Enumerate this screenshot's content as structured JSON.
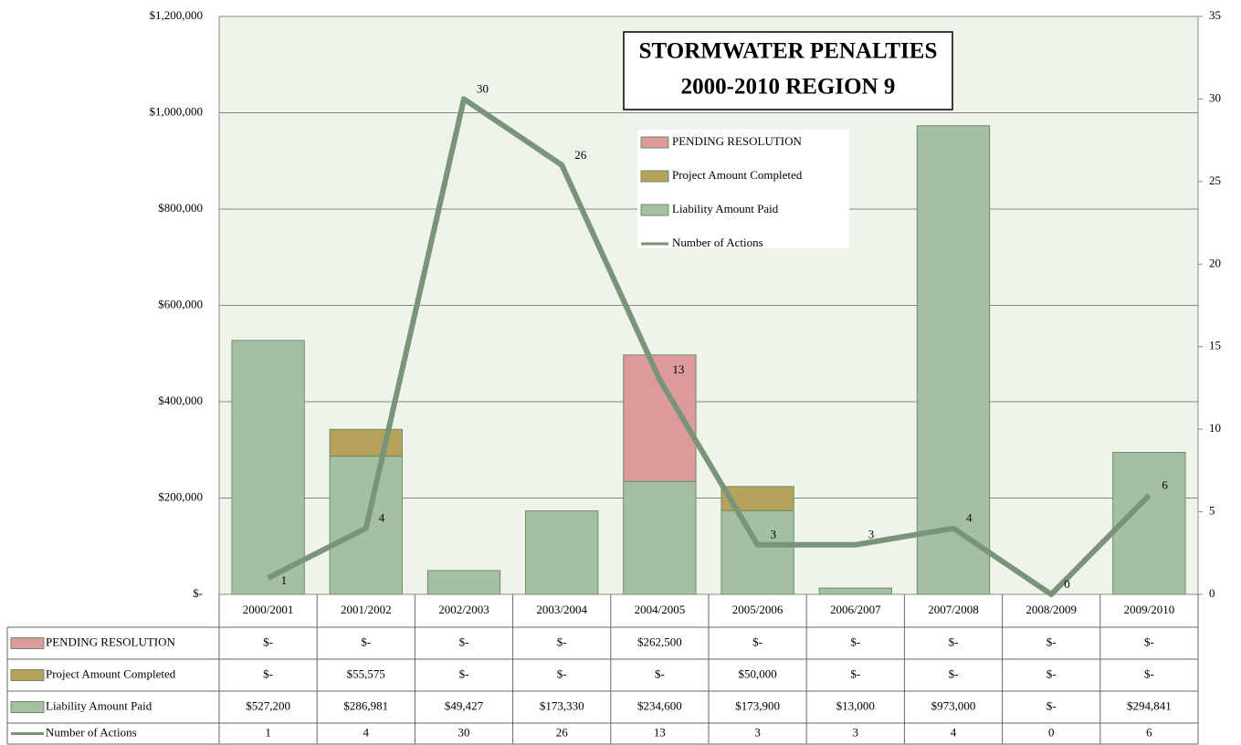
{
  "chart_data": {
    "type": "bar",
    "stacked": true,
    "title": [
      "STORMWATER PENALTIES",
      "2000-2010 REGION 9"
    ],
    "categories": [
      "2000/2001",
      "2001/2002",
      "2002/2003",
      "2003/2004",
      "2004/2005",
      "2005/2006",
      "2006/2007",
      "2007/2008",
      "2008/2009",
      "2009/2010"
    ],
    "series": [
      {
        "name": "PENDING RESOLUTION",
        "type": "bar",
        "color": "#dc9a9a",
        "values": [
          0,
          0,
          0,
          0,
          262500,
          0,
          0,
          0,
          0,
          0
        ],
        "value_labels": [
          "$-",
          "$-",
          "$-",
          "$-",
          "$262,500",
          "$-",
          "$-",
          "$-",
          "$-",
          "$-"
        ]
      },
      {
        "name": "Project Amount Completed",
        "type": "bar",
        "color": "#b5a35c",
        "values": [
          0,
          55575,
          0,
          0,
          0,
          50000,
          0,
          0,
          0,
          0
        ],
        "value_labels": [
          "$-",
          "$55,575",
          "$-",
          "$-",
          "$-",
          "$50,000",
          "$-",
          "$-",
          "$-",
          "$-"
        ]
      },
      {
        "name": "Liability Amount Paid",
        "type": "bar",
        "color": "#a4bfa1",
        "values": [
          527200,
          286981,
          49427,
          173330,
          234600,
          173900,
          13000,
          973000,
          0,
          294841
        ],
        "value_labels": [
          "$527,200",
          "$286,981",
          "$49,427",
          "$173,330",
          "$234,600",
          "$173,900",
          "$13,000",
          "$973,000",
          "$-",
          "$294,841"
        ]
      },
      {
        "name": "Number of Actions",
        "type": "line",
        "axis": "y2",
        "color": "#7a947a",
        "values": [
          1,
          4,
          30,
          26,
          13,
          3,
          3,
          4,
          0,
          6
        ]
      }
    ],
    "ylim": [
      0,
      1200000
    ],
    "yticks": [
      {
        "value": 0,
        "label": "$-"
      },
      {
        "value": 200000,
        "label": "$200,000"
      },
      {
        "value": 400000,
        "label": "$400,000"
      },
      {
        "value": 600000,
        "label": "$600,000"
      },
      {
        "value": 800000,
        "label": "$800,000"
      },
      {
        "value": 1000000,
        "label": "$1,000,000"
      },
      {
        "value": 1200000,
        "label": "$1,200,000"
      }
    ],
    "y2lim": [
      0,
      35
    ],
    "y2ticks": [
      0,
      5,
      10,
      15,
      20,
      25,
      30,
      35
    ],
    "grid": true
  }
}
